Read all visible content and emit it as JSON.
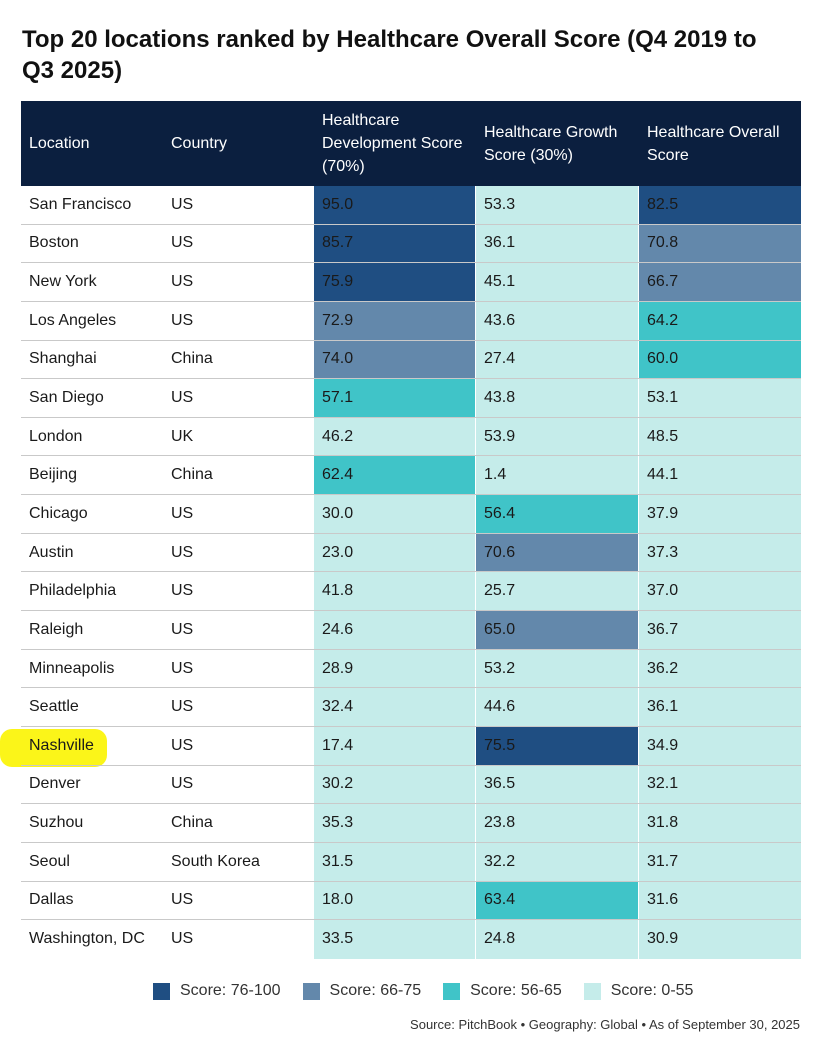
{
  "title": "Top 20 locations ranked by Healthcare Overall Score (Q4 2019 to Q3 2025)",
  "colors": {
    "dark": "#1f4e82",
    "mid": "#6388ab",
    "teal": "#40c4c8",
    "light": "#c5ecea",
    "header": "#0b1f3f"
  },
  "chart_data": {
    "type": "table",
    "columns": [
      "Location",
      "Country",
      "Healthcare Development Score (70%)",
      "Healthcare Growth Score (30%)",
      "Healthcare Overall Score"
    ],
    "rows": [
      {
        "location": "San Francisco",
        "country": "US",
        "development": "95.0",
        "growth": "53.3",
        "overall": "82.5"
      },
      {
        "location": "Boston",
        "country": "US",
        "development": "85.7",
        "growth": "36.1",
        "overall": "70.8"
      },
      {
        "location": "New York",
        "country": "US",
        "development": "75.9",
        "growth": "45.1",
        "overall": "66.7"
      },
      {
        "location": "Los Angeles",
        "country": "US",
        "development": "72.9",
        "growth": "43.6",
        "overall": "64.2"
      },
      {
        "location": "Shanghai",
        "country": "China",
        "development": "74.0",
        "growth": "27.4",
        "overall": "60.0"
      },
      {
        "location": "San Diego",
        "country": "US",
        "development": "57.1",
        "growth": "43.8",
        "overall": "53.1"
      },
      {
        "location": "London",
        "country": "UK",
        "development": "46.2",
        "growth": "53.9",
        "overall": "48.5"
      },
      {
        "location": "Beijing",
        "country": "China",
        "development": "62.4",
        "growth": "1.4",
        "overall": "44.1"
      },
      {
        "location": "Chicago",
        "country": "US",
        "development": "30.0",
        "growth": "56.4",
        "overall": "37.9"
      },
      {
        "location": "Austin",
        "country": "US",
        "development": "23.0",
        "growth": "70.6",
        "overall": "37.3"
      },
      {
        "location": "Philadelphia",
        "country": "US",
        "development": "41.8",
        "growth": "25.7",
        "overall": "37.0"
      },
      {
        "location": "Raleigh",
        "country": "US",
        "development": "24.6",
        "growth": "65.0",
        "overall": "36.7"
      },
      {
        "location": "Minneapolis",
        "country": "US",
        "development": "28.9",
        "growth": "53.2",
        "overall": "36.2"
      },
      {
        "location": "Seattle",
        "country": "US",
        "development": "32.4",
        "growth": "44.6",
        "overall": "36.1"
      },
      {
        "location": "Nashville",
        "country": "US",
        "development": "17.4",
        "growth": "75.5",
        "overall": "34.9"
      },
      {
        "location": "Denver",
        "country": "US",
        "development": "30.2",
        "growth": "36.5",
        "overall": "32.1"
      },
      {
        "location": "Suzhou",
        "country": "China",
        "development": "35.3",
        "growth": "23.8",
        "overall": "31.8"
      },
      {
        "location": "Seoul",
        "country": "South Korea",
        "development": "31.5",
        "growth": "32.2",
        "overall": "31.7"
      },
      {
        "location": "Dallas",
        "country": "US",
        "development": "18.0",
        "growth": "63.4",
        "overall": "31.6"
      },
      {
        "location": "Washington, DC",
        "country": "US",
        "development": "33.5",
        "growth": "24.8",
        "overall": "30.9"
      }
    ],
    "highlighted_location": "Nashville",
    "legend": [
      {
        "label": "Score: 76-100",
        "color": "#1f4e82"
      },
      {
        "label": "Score: 66-75",
        "color": "#6388ab"
      },
      {
        "label": "Score: 56-65",
        "color": "#40c4c8"
      },
      {
        "label": "Score: 0-55",
        "color": "#c5ecea"
      }
    ]
  },
  "source": "Source: PitchBook  •  Geography: Global  •  As of September 30, 2025"
}
